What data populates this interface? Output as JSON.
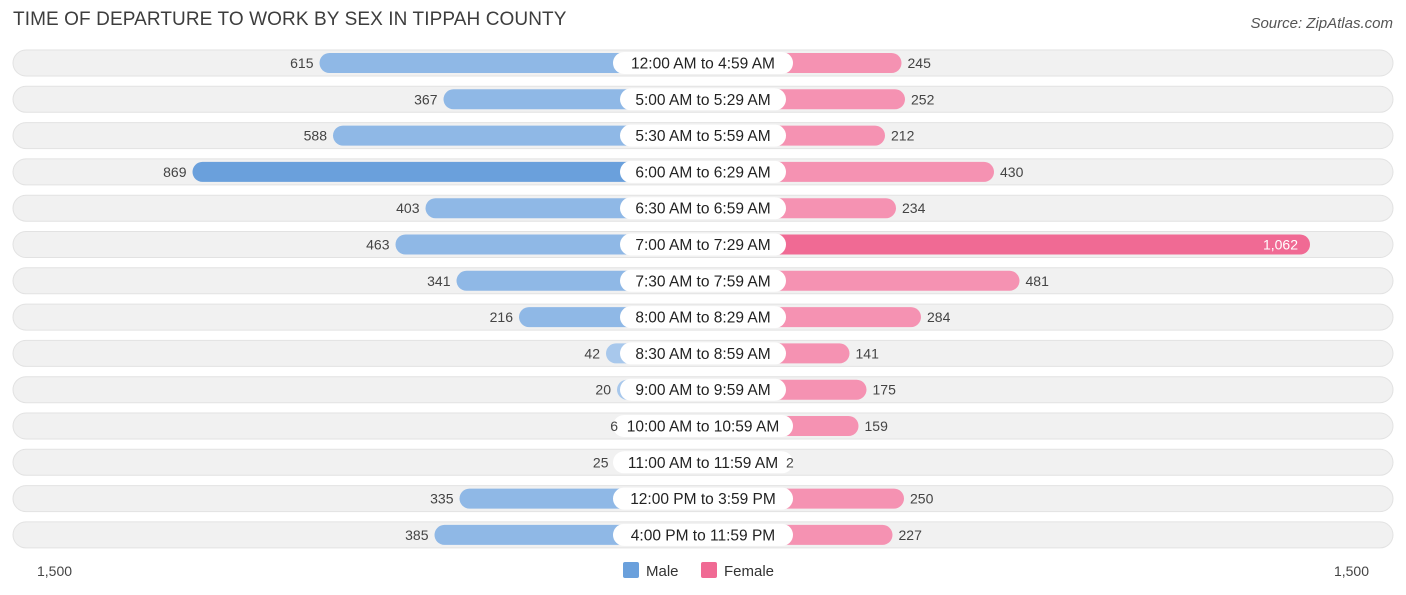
{
  "header": {
    "title": "TIME OF DEPARTURE TO WORK BY SEX IN TIPPAH COUNTY",
    "source": "Source: ZipAtlas.com"
  },
  "colors": {
    "male": "#6aa0dc",
    "male_light": "#a8c8ec",
    "female": "#f06a94",
    "female_light": "#f7a8c0",
    "row_bg": "#f1f1f1"
  },
  "chart_data": {
    "type": "bar",
    "orientation": "horizontal-diverging",
    "categories": [
      "12:00 AM to 4:59 AM",
      "5:00 AM to 5:29 AM",
      "5:30 AM to 5:59 AM",
      "6:00 AM to 6:29 AM",
      "6:30 AM to 6:59 AM",
      "7:00 AM to 7:29 AM",
      "7:30 AM to 7:59 AM",
      "8:00 AM to 8:29 AM",
      "8:30 AM to 8:59 AM",
      "9:00 AM to 9:59 AM",
      "10:00 AM to 10:59 AM",
      "11:00 AM to 11:59 AM",
      "12:00 PM to 3:59 PM",
      "4:00 PM to 11:59 PM"
    ],
    "series": [
      {
        "name": "Male",
        "values": [
          615,
          367,
          588,
          869,
          403,
          463,
          341,
          216,
          42,
          20,
          6,
          25,
          335,
          385
        ],
        "labels": [
          "615",
          "367",
          "588",
          "869",
          "403",
          "463",
          "341",
          "216",
          "42",
          "20",
          "6",
          "25",
          "335",
          "385"
        ]
      },
      {
        "name": "Female",
        "values": [
          245,
          252,
          212,
          430,
          234,
          1062,
          481,
          284,
          141,
          175,
          159,
          2,
          250,
          227
        ],
        "labels": [
          "245",
          "252",
          "212",
          "430",
          "234",
          "1,062",
          "481",
          "284",
          "141",
          "175",
          "159",
          "2",
          "250",
          "227"
        ]
      }
    ],
    "axis": {
      "left_label": "1,500",
      "right_label": "1,500",
      "max": 1500
    },
    "legend": {
      "position": "bottom-center",
      "items": [
        "Male",
        "Female"
      ]
    }
  }
}
